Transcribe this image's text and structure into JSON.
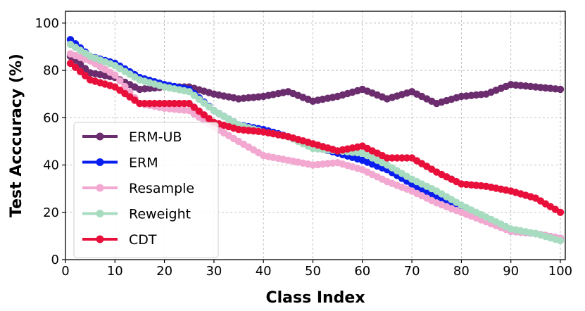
{
  "chart_data": {
    "type": "line",
    "title": "",
    "xlabel": "Class Index",
    "ylabel": "Test Acccuracy (%)",
    "xlim": [
      0,
      101
    ],
    "ylim": [
      0,
      105
    ],
    "xticks": [
      "0",
      "10",
      "20",
      "30",
      "40",
      "50",
      "60",
      "70",
      "80",
      "90",
      "100"
    ],
    "yticks": [
      "0",
      "20",
      "40",
      "60",
      "80",
      "100"
    ],
    "grid": true,
    "legend_position": "lower-left",
    "x": [
      1,
      5,
      10,
      15,
      20,
      25,
      30,
      35,
      40,
      45,
      50,
      55,
      60,
      65,
      70,
      75,
      80,
      85,
      90,
      95,
      100
    ],
    "series": [
      {
        "name": "ERM-UB",
        "color": "#6b2d6e",
        "values": [
          86,
          79,
          77,
          72,
          73,
          73,
          70,
          68,
          69,
          71,
          67,
          69,
          72,
          68,
          71,
          66,
          69,
          70,
          74,
          73,
          72
        ]
      },
      {
        "name": "ERM",
        "color": "#0a1ef0",
        "values": [
          93,
          86,
          83,
          77,
          74,
          72,
          63,
          57,
          55,
          52,
          48,
          45,
          42,
          38,
          32,
          26,
          22,
          17,
          12,
          11,
          9
        ]
      },
      {
        "name": "Resample",
        "color": "#f2a8d0",
        "values": [
          87,
          84,
          78,
          66,
          64,
          63,
          56,
          50,
          44,
          42,
          40,
          41,
          38,
          33,
          29,
          24,
          20,
          16,
          12,
          11,
          9
        ]
      },
      {
        "name": "Reweight",
        "color": "#a8dcc0",
        "values": [
          91,
          86,
          82,
          76,
          73,
          71,
          63,
          57,
          54,
          52,
          47,
          46,
          45,
          40,
          34,
          29,
          23,
          18,
          13,
          11,
          8
        ]
      },
      {
        "name": "CDT",
        "color": "#e8103a",
        "values": [
          83,
          76,
          73,
          66,
          66,
          66,
          58,
          55,
          54,
          52,
          49,
          46,
          48,
          43,
          43,
          37,
          32,
          31,
          29,
          26,
          20
        ]
      }
    ]
  }
}
